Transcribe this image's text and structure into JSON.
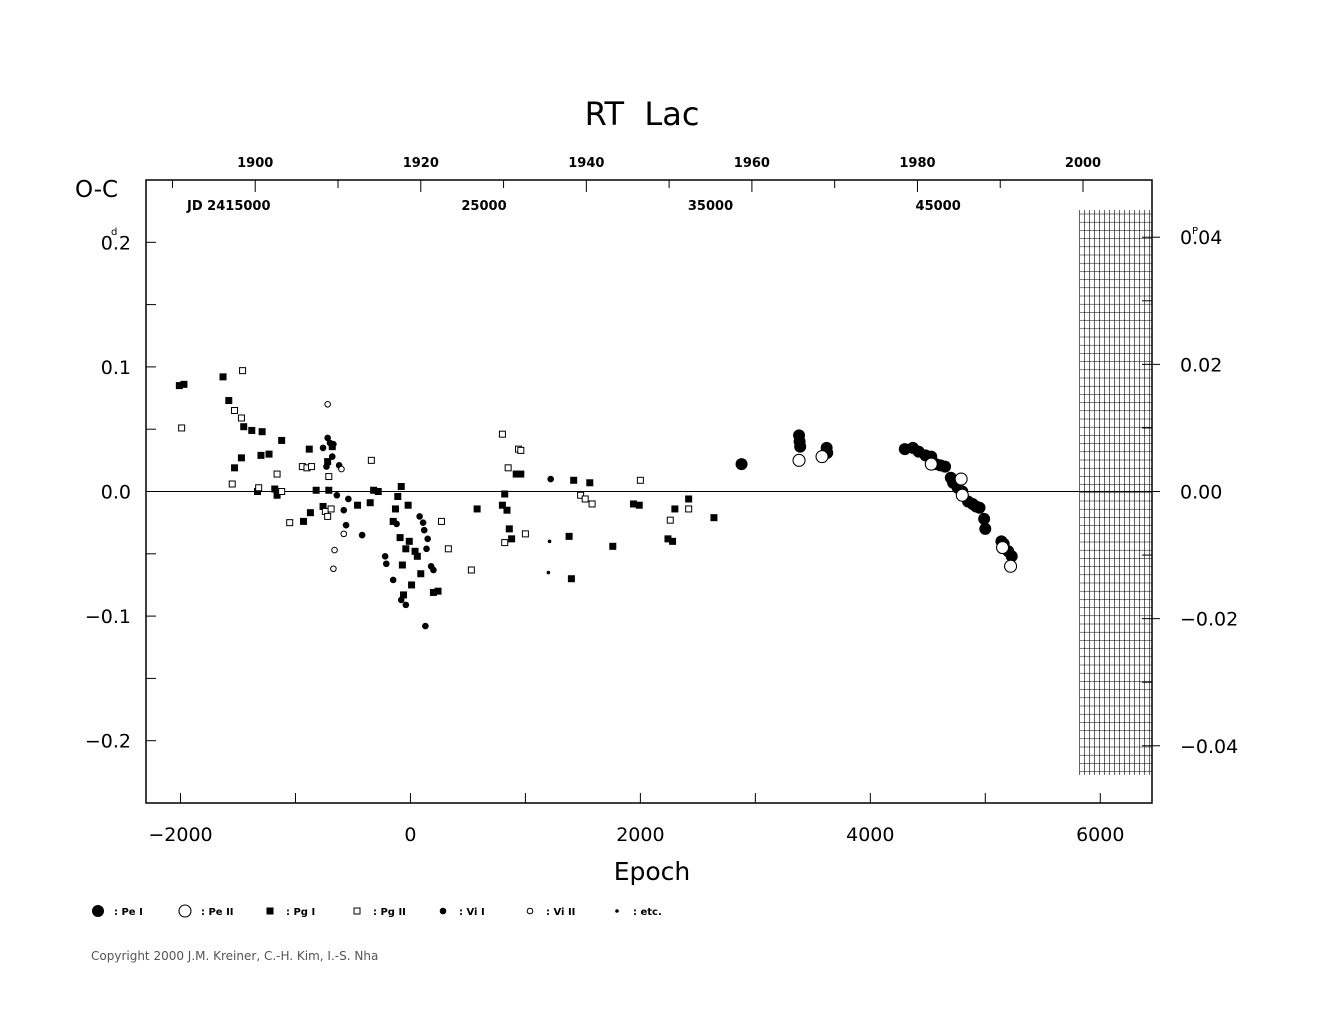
{
  "chart_data": {
    "type": "scatter",
    "title": "RT  Lac",
    "ylabel": "O-C",
    "ylabel_unit": "d",
    "xlabel": "Epoch",
    "right_unit": "P",
    "xlim": [
      -2300,
      6450
    ],
    "ylim": [
      -0.25,
      0.25
    ],
    "period_ratio": 0.196,
    "x_ticks": [
      "-2000",
      "0",
      "2000",
      "4000",
      "6000"
    ],
    "y_ticks": [
      "-0.2",
      "-0.1",
      "0.0",
      "0.1",
      "0.2"
    ],
    "right_ticks": [
      "-0.04",
      "-0.02",
      "0.00",
      "0.02",
      "0.04"
    ],
    "top_year_ticks": [
      {
        "label": "1900",
        "epoch": -1350
      },
      {
        "label": "1920",
        "epoch": 90
      },
      {
        "label": "1940",
        "epoch": 1530
      },
      {
        "label": "1960",
        "epoch": 2970
      },
      {
        "label": "1980",
        "epoch": 4410
      },
      {
        "label": "2000",
        "epoch": 5850
      }
    ],
    "top_minor_epochs": [
      -2070,
      -630,
      810,
      2250,
      3690,
      5130
    ],
    "jd_labels": [
      {
        "label": "JD  2415000",
        "epoch": -1580
      },
      {
        "label": "25000",
        "epoch": 640
      },
      {
        "label": "35000",
        "epoch": 2610
      },
      {
        "label": "45000",
        "epoch": 4590
      }
    ],
    "grid": false,
    "hatched_band": {
      "from": 5820,
      "to": 6450
    },
    "legend": [
      {
        "symbol": "pe1",
        "label": ": Pe I"
      },
      {
        "symbol": "pe2",
        "label": ": Pe II"
      },
      {
        "symbol": "pg1",
        "label": ": Pg I"
      },
      {
        "symbol": "pg2",
        "label": ": Pg II"
      },
      {
        "symbol": "vi1",
        "label": ": Vi I"
      },
      {
        "symbol": "vi2",
        "label": ": Vi II"
      },
      {
        "symbol": "etc",
        "label": ": etc."
      }
    ],
    "series": [
      {
        "name": "Pe I",
        "symbol": "pe1",
        "points": [
          [
            2880,
            0.022
          ],
          [
            3380,
            0.045
          ],
          [
            3385,
            0.04
          ],
          [
            3390,
            0.036
          ],
          [
            3620,
            0.035
          ],
          [
            3625,
            0.031
          ],
          [
            4300,
            0.034
          ],
          [
            4370,
            0.035
          ],
          [
            4420,
            0.032
          ],
          [
            4480,
            0.029
          ],
          [
            4530,
            0.028
          ],
          [
            4570,
            0.022
          ],
          [
            4610,
            0.021
          ],
          [
            4650,
            0.02
          ],
          [
            4700,
            0.011
          ],
          [
            4720,
            0.007
          ],
          [
            4760,
            0.003
          ],
          [
            4800,
            0.0
          ],
          [
            4850,
            -0.008
          ],
          [
            4890,
            -0.01
          ],
          [
            4920,
            -0.012
          ],
          [
            4950,
            -0.013
          ],
          [
            4990,
            -0.022
          ],
          [
            5000,
            -0.03
          ],
          [
            5140,
            -0.04
          ],
          [
            5160,
            -0.042
          ],
          [
            5200,
            -0.048
          ],
          [
            5230,
            -0.052
          ]
        ]
      },
      {
        "name": "Pe II",
        "symbol": "pe2",
        "points": [
          [
            3380,
            0.025
          ],
          [
            3580,
            0.028
          ],
          [
            4530,
            0.022
          ],
          [
            4790,
            0.01
          ],
          [
            4800,
            -0.003
          ],
          [
            5150,
            -0.045
          ],
          [
            5220,
            -0.06
          ]
        ]
      },
      {
        "name": "Pg I",
        "symbol": "pg1",
        "points": [
          [
            -2010,
            0.085
          ],
          [
            -1970,
            0.086
          ],
          [
            -1630,
            0.092
          ],
          [
            -1580,
            0.073
          ],
          [
            -1530,
            0.019
          ],
          [
            -1470,
            0.027
          ],
          [
            -1450,
            0.052
          ],
          [
            -1380,
            0.049
          ],
          [
            -1330,
            0.0
          ],
          [
            -1300,
            0.029
          ],
          [
            -1290,
            0.048
          ],
          [
            -1230,
            0.03
          ],
          [
            -1180,
            0.002
          ],
          [
            -1160,
            -0.003
          ],
          [
            -1120,
            0.041
          ],
          [
            -930,
            -0.024
          ],
          [
            -880,
            0.034
          ],
          [
            -870,
            -0.017
          ],
          [
            -820,
            0.001
          ],
          [
            -760,
            -0.012
          ],
          [
            -720,
            0.024
          ],
          [
            -710,
            0.001
          ],
          [
            -680,
            0.036
          ],
          [
            -460,
            -0.011
          ],
          [
            -350,
            -0.009
          ],
          [
            -320,
            0.001
          ],
          [
            -280,
            0.0
          ],
          [
            -150,
            -0.024
          ],
          [
            -130,
            -0.014
          ],
          [
            -110,
            -0.004
          ],
          [
            -90,
            -0.037
          ],
          [
            -80,
            0.004
          ],
          [
            -70,
            -0.059
          ],
          [
            -60,
            -0.083
          ],
          [
            -40,
            -0.046
          ],
          [
            -20,
            -0.011
          ],
          [
            -10,
            -0.04
          ],
          [
            10,
            -0.075
          ],
          [
            40,
            -0.048
          ],
          [
            60,
            -0.052
          ],
          [
            90,
            -0.066
          ],
          [
            200,
            -0.081
          ],
          [
            240,
            -0.08
          ],
          [
            580,
            -0.014
          ],
          [
            800,
            -0.011
          ],
          [
            820,
            -0.002
          ],
          [
            840,
            -0.015
          ],
          [
            860,
            -0.03
          ],
          [
            880,
            -0.038
          ],
          [
            920,
            0.014
          ],
          [
            960,
            0.014
          ],
          [
            1380,
            -0.036
          ],
          [
            1400,
            -0.07
          ],
          [
            1420,
            0.009
          ],
          [
            1560,
            0.007
          ],
          [
            1760,
            -0.044
          ],
          [
            1940,
            -0.01
          ],
          [
            1990,
            -0.011
          ],
          [
            2240,
            -0.038
          ],
          [
            2280,
            -0.04
          ],
          [
            2300,
            -0.014
          ],
          [
            2420,
            -0.006
          ],
          [
            2640,
            -0.021
          ]
        ]
      },
      {
        "name": "Pg II",
        "symbol": "pg2",
        "points": [
          [
            -1990,
            0.051
          ],
          [
            -1530,
            0.065
          ],
          [
            -1460,
            0.097
          ],
          [
            -1470,
            0.059
          ],
          [
            -1550,
            0.006
          ],
          [
            -1320,
            0.003
          ],
          [
            -1160,
            0.014
          ],
          [
            -1120,
            0.0
          ],
          [
            -1050,
            -0.025
          ],
          [
            -940,
            0.02
          ],
          [
            -900,
            0.019
          ],
          [
            -860,
            0.02
          ],
          [
            -740,
            -0.016
          ],
          [
            -720,
            -0.02
          ],
          [
            -710,
            0.012
          ],
          [
            -690,
            -0.014
          ],
          [
            -340,
            0.025
          ],
          [
            270,
            -0.024
          ],
          [
            330,
            -0.046
          ],
          [
            530,
            -0.063
          ],
          [
            800,
            0.046
          ],
          [
            820,
            -0.041
          ],
          [
            850,
            0.019
          ],
          [
            940,
            0.034
          ],
          [
            960,
            0.033
          ],
          [
            1000,
            -0.034
          ],
          [
            1480,
            -0.003
          ],
          [
            1520,
            -0.006
          ],
          [
            1580,
            -0.01
          ],
          [
            2000,
            0.009
          ],
          [
            2260,
            -0.023
          ],
          [
            2420,
            -0.014
          ]
        ]
      },
      {
        "name": "Vi I",
        "symbol": "vi1",
        "points": [
          [
            -760,
            0.035
          ],
          [
            -730,
            0.02
          ],
          [
            -720,
            0.043
          ],
          [
            -700,
            0.039
          ],
          [
            -680,
            0.028
          ],
          [
            -670,
            0.038
          ],
          [
            -640,
            -0.003
          ],
          [
            -620,
            0.021
          ],
          [
            -580,
            -0.015
          ],
          [
            -560,
            -0.027
          ],
          [
            -540,
            -0.006
          ],
          [
            -420,
            -0.035
          ],
          [
            -220,
            -0.052
          ],
          [
            -210,
            -0.058
          ],
          [
            -150,
            -0.071
          ],
          [
            -120,
            -0.026
          ],
          [
            -80,
            -0.087
          ],
          [
            -40,
            -0.091
          ],
          [
            80,
            -0.02
          ],
          [
            110,
            -0.025
          ],
          [
            120,
            -0.031
          ],
          [
            140,
            -0.046
          ],
          [
            150,
            -0.038
          ],
          [
            180,
            -0.06
          ],
          [
            200,
            -0.063
          ],
          [
            130,
            -0.108
          ],
          [
            1220,
            0.01
          ]
        ]
      },
      {
        "name": "Vi II",
        "symbol": "vi2",
        "points": [
          [
            -720,
            0.07
          ],
          [
            -660,
            -0.047
          ],
          [
            -670,
            -0.062
          ],
          [
            -600,
            0.018
          ],
          [
            -580,
            -0.034
          ]
        ]
      },
      {
        "name": "etc.",
        "symbol": "etc",
        "points": [
          [
            1210,
            -0.04
          ],
          [
            1200,
            -0.065
          ]
        ]
      }
    ]
  },
  "footer": {
    "copyright": "Copyright 2000 J.M. Kreiner, C.-H. Kim, I.-S. Nha"
  }
}
